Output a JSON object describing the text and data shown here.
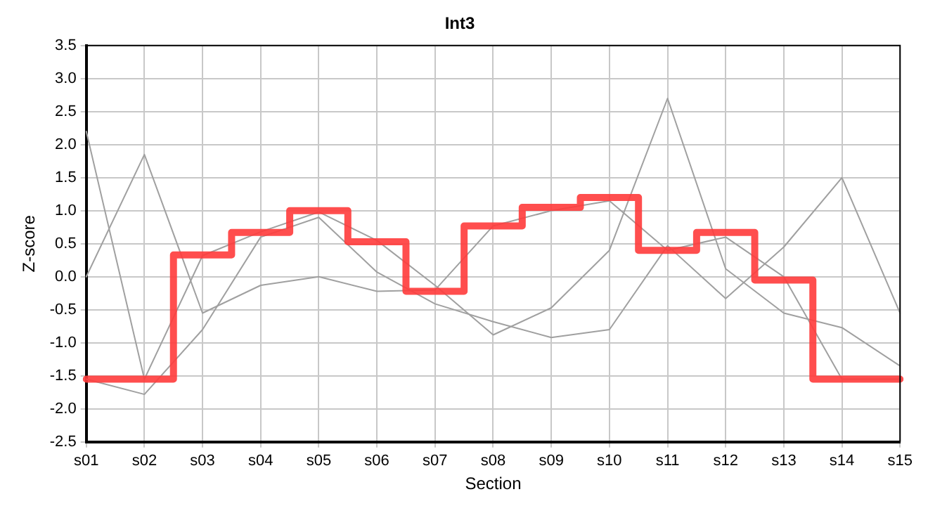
{
  "chart_data": {
    "type": "line",
    "title": "Int3",
    "xlabel": "Section",
    "ylabel": "Z-score",
    "categories": [
      "s01",
      "s02",
      "s03",
      "s04",
      "s05",
      "s06",
      "s07",
      "s08",
      "s09",
      "s10",
      "s11",
      "s12",
      "s13",
      "s14",
      "s15"
    ],
    "series": [
      {
        "color": "#a0a0a0",
        "values": [
          0.0,
          1.85,
          -0.55,
          -0.13,
          0.0,
          -0.22,
          -0.2,
          0.77,
          1.0,
          1.15,
          0.4,
          0.6,
          0.0,
          -1.55,
          -1.55
        ]
      },
      {
        "color": "#a0a0a0",
        "values": [
          2.2,
          -1.55,
          0.32,
          0.68,
          0.98,
          0.55,
          -0.13,
          -0.88,
          -0.47,
          0.4,
          2.7,
          0.12,
          -0.55,
          -0.77,
          -1.35
        ]
      },
      {
        "color": "#a0a0a0",
        "values": [
          -1.55,
          -1.78,
          -0.8,
          0.6,
          0.9,
          0.07,
          -0.41,
          -0.68,
          -0.92,
          -0.8,
          0.47,
          -0.33,
          0.45,
          1.5,
          -0.55
        ]
      },
      {
        "type": "step",
        "color": "#ff3b3b",
        "values": [
          -1.55,
          -1.55,
          0.33,
          0.67,
          1.0,
          0.53,
          -0.22,
          0.77,
          1.05,
          1.2,
          0.4,
          0.67,
          -0.05,
          -1.55,
          -1.55
        ]
      }
    ],
    "ylim": [
      -2.5,
      3.5
    ],
    "yticks": [
      {
        "value": -2.5,
        "label": "-2.5"
      },
      {
        "value": -2,
        "label": "-2.0"
      },
      {
        "value": -1.5,
        "label": "-1.5"
      },
      {
        "value": -1,
        "label": "-1.0"
      },
      {
        "value": -0.5,
        "label": "-0.5"
      },
      {
        "value": 0,
        "label": "0.0"
      },
      {
        "value": 0.5,
        "label": "0.5"
      },
      {
        "value": 1,
        "label": "1.0"
      },
      {
        "value": 1.5,
        "label": "1.5"
      },
      {
        "value": 2,
        "label": "2.0"
      },
      {
        "value": 2.5,
        "label": "2.5"
      },
      {
        "value": 3,
        "label": "3.0"
      },
      {
        "value": 3.5,
        "label": "3.5"
      }
    ],
    "grid": true,
    "legend": false,
    "marker": "none",
    "line_style": "solid"
  }
}
